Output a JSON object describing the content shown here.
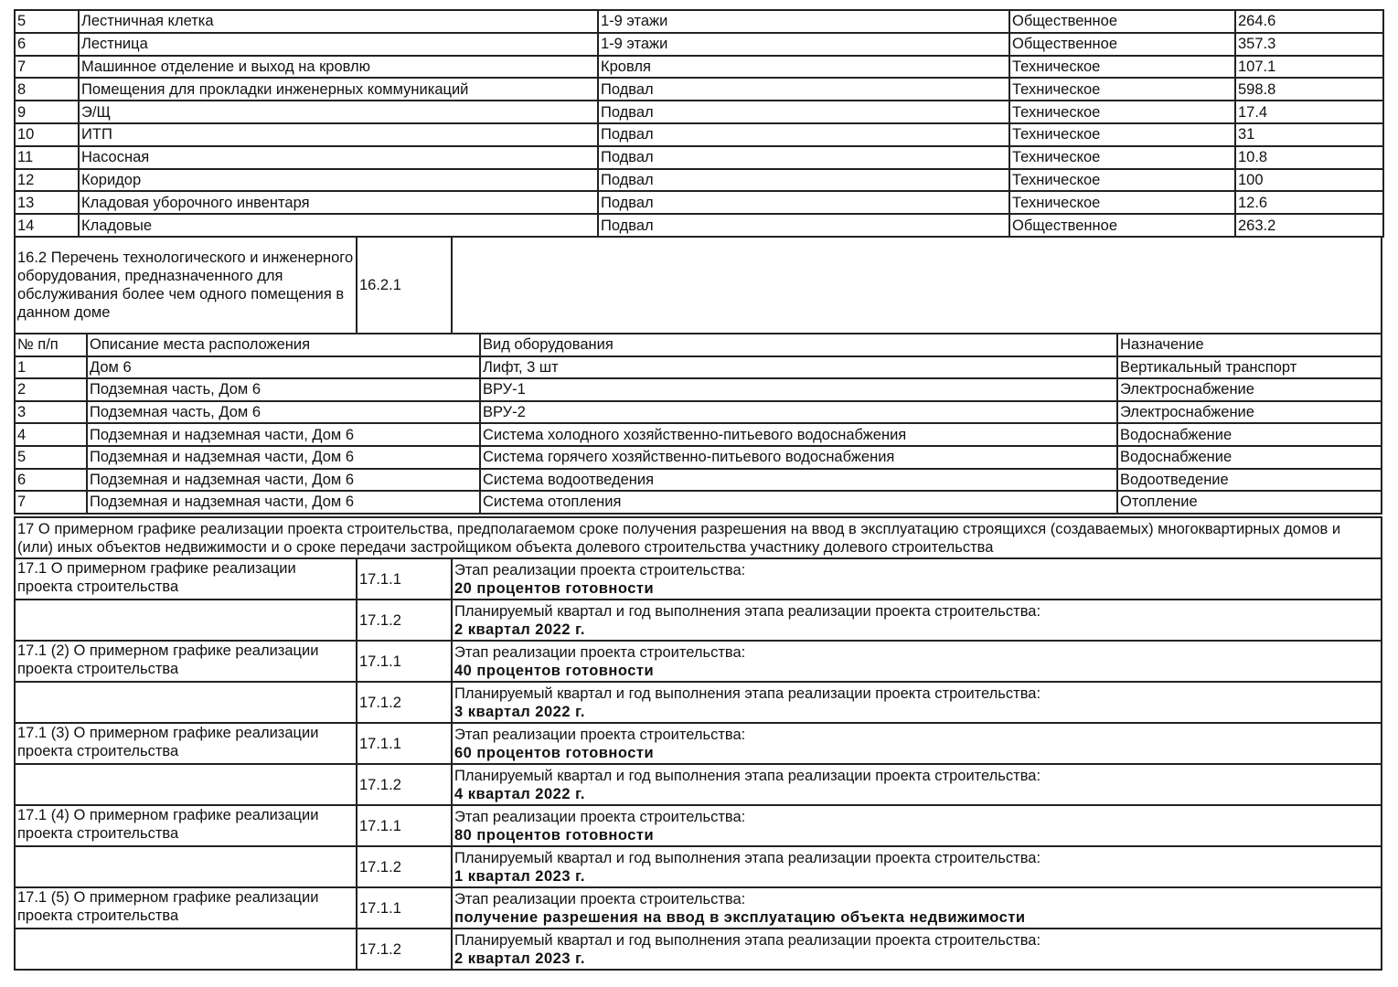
{
  "premises": [
    [
      "5",
      "Лестничная клетка",
      "1-9 этажи",
      "Общественное",
      "264.6"
    ],
    [
      "6",
      "Лестница",
      "1-9 этажи",
      "Общественное",
      "357.3"
    ],
    [
      "7",
      "Машинное отделение и выход на кровлю",
      "Кровля",
      "Техническое",
      "107.1"
    ],
    [
      "8",
      "Помещения для прокладки инженерных коммуникаций",
      "Подвал",
      "Техническое",
      "598.8"
    ],
    [
      "9",
      "Э/Щ",
      "Подвал",
      "Техническое",
      "17.4"
    ],
    [
      "10",
      "ИТП",
      "Подвал",
      "Техническое",
      "31"
    ],
    [
      "11",
      "Насосная",
      "Подвал",
      "Техническое",
      "10.8"
    ],
    [
      "12",
      "Коридор",
      "Подвал",
      "Техническое",
      "100"
    ],
    [
      "13",
      "Кладовая уборочного инвентаря",
      "Подвал",
      "Техническое",
      "12.6"
    ],
    [
      "14",
      "Кладовые",
      "Подвал",
      "Общественное",
      "263.2"
    ]
  ],
  "section_16_2": {
    "title": "16.2 Перечень технологического и инженерного оборудования, предназначенного для обслуживания более чем одного помещения в данном доме",
    "code": "16.2.1",
    "value": ""
  },
  "equipment": {
    "headers": [
      "№ п/п",
      "Описание места расположения",
      "Вид оборудования",
      "Назначение"
    ],
    "rows": [
      [
        "1",
        "Дом 6",
        "Лифт, 3 шт",
        "Вертикальный транспорт"
      ],
      [
        "2",
        "Подземная часть, Дом 6",
        "ВРУ-1",
        "Электроснабжение"
      ],
      [
        "3",
        "Подземная часть, Дом 6",
        "ВРУ-2",
        "Электроснабжение"
      ],
      [
        "4",
        "Подземная и надземная части, Дом 6",
        "Система холодного хозяйственно-питьевого водоснабжения",
        "Водоснабжение"
      ],
      [
        "5",
        "Подземная и надземная части, Дом 6",
        "Система горячего хозяйственно-питьевого водоснабжения",
        "Водоснабжение"
      ],
      [
        "6",
        "Подземная и надземная части, Дом 6",
        "Система водоотведения",
        "Водоотведение"
      ],
      [
        "7",
        "Подземная и надземная части, Дом 6",
        "Система отопления",
        "Отопление"
      ]
    ]
  },
  "section_17": {
    "title": "17 О примерном графике реализации проекта строительства, предполагаемом сроке получения разрешения на ввод в эксплуатацию строящихся (создаваемых) многоквартирных домов и (или) иных объектов недвижимости и о сроке передачи застройщиком объекта долевого строительства участнику долевого строительства"
  },
  "schedule": [
    {
      "title": "17.1 О примерном графике реализации проекта строительства",
      "stage_code": "17.1.1",
      "stage_label": "Этап реализации проекта строительства:",
      "stage_value": "20 процентов готовности",
      "quarter_code": "17.1.2",
      "quarter_label": "Планируемый квартал и год выполнения этапа реализации проекта строительства:",
      "quarter_value": "2 квартал 2022 г."
    },
    {
      "title": "17.1 (2) О примерном графике реализации проекта строительства",
      "stage_code": "17.1.1",
      "stage_label": "Этап реализации проекта строительства:",
      "stage_value": "40 процентов готовности",
      "quarter_code": "17.1.2",
      "quarter_label": "Планируемый квартал и год выполнения этапа реализации проекта строительства:",
      "quarter_value": "3 квартал 2022 г."
    },
    {
      "title": "17.1 (3) О примерном графике реализации проекта строительства",
      "stage_code": "17.1.1",
      "stage_label": "Этап реализации проекта строительства:",
      "stage_value": "60 процентов готовности",
      "quarter_code": "17.1.2",
      "quarter_label": "Планируемый квартал и год выполнения этапа реализации проекта строительства:",
      "quarter_value": "4 квартал 2022 г."
    },
    {
      "title": "17.1 (4) О примерном графике реализации проекта строительства",
      "stage_code": "17.1.1",
      "stage_label": "Этап реализации проекта строительства:",
      "stage_value": "80 процентов готовности",
      "quarter_code": "17.1.2",
      "quarter_label": "Планируемый квартал и год выполнения этапа реализации проекта строительства:",
      "quarter_value": "1 квартал 2023 г."
    },
    {
      "title": "17.1 (5) О примерном графике реализации проекта строительства",
      "stage_code": "17.1.1",
      "stage_label": "Этап реализации проекта строительства:",
      "stage_value": "получение разрешения на ввод в эксплуатацию объекта недвижимости",
      "quarter_code": "17.1.2",
      "quarter_label": "Планируемый квартал и год выполнения этапа реализации проекта строительства:",
      "quarter_value": "2 квартал 2023 г."
    }
  ]
}
